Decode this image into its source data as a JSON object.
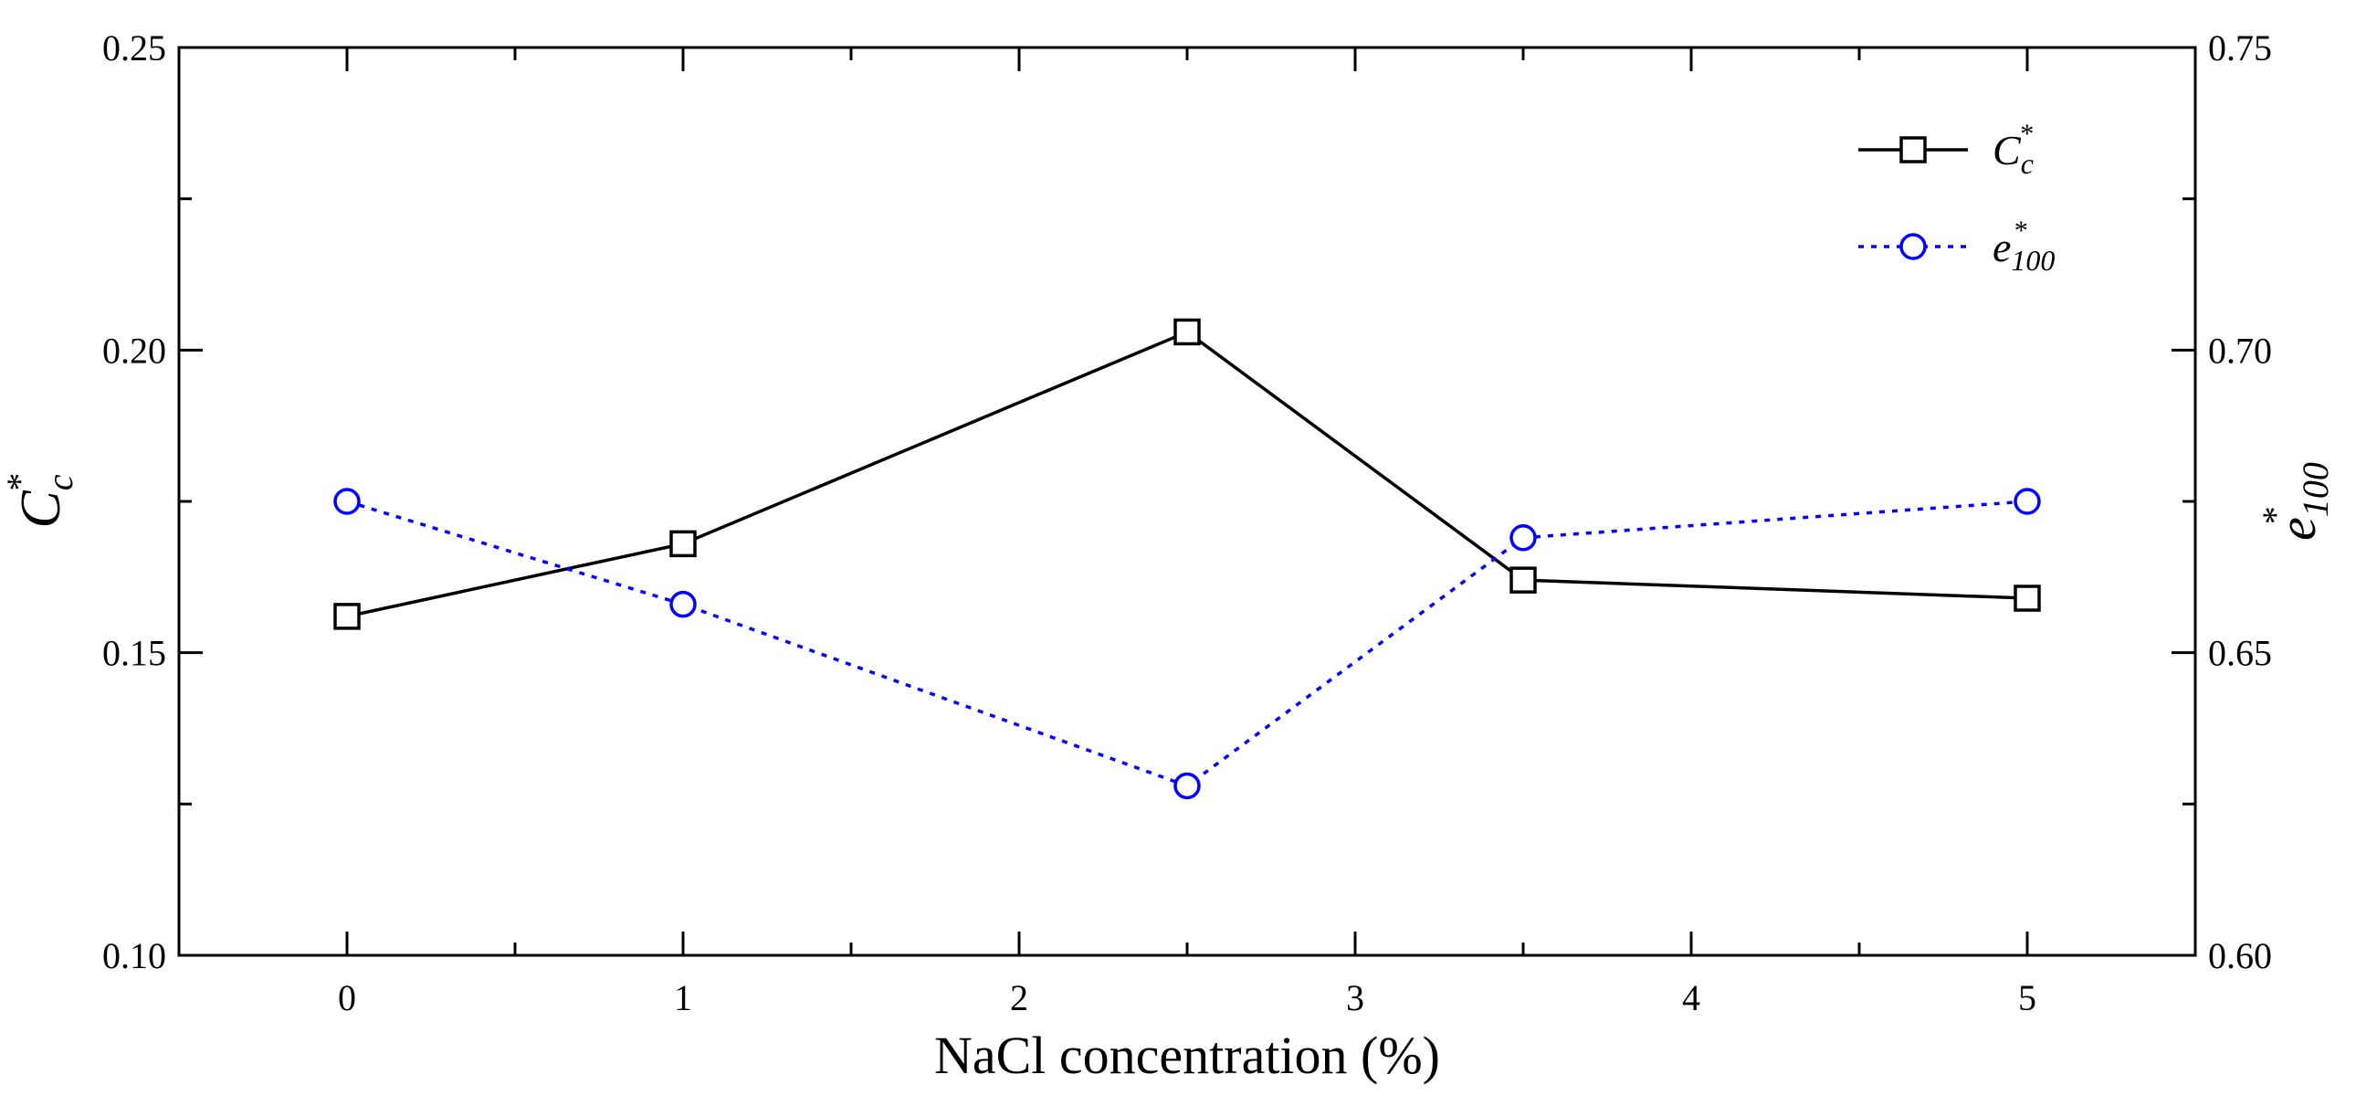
{
  "chart_data": {
    "type": "line",
    "title": "",
    "xlabel": "NaCl concentration (%)",
    "ylabel": {
      "base": "C",
      "sub": "c",
      "sup": "*"
    },
    "y2label": {
      "base": "e",
      "sub": "100",
      "sup": "*"
    },
    "xlim": [
      -0.5,
      5.5
    ],
    "ylim": [
      0.1,
      0.25
    ],
    "y2lim": [
      0.6,
      0.75
    ],
    "x_ticks": [
      "0",
      "1",
      "2",
      "3",
      "4",
      "5"
    ],
    "y_ticks": [
      "0.10",
      "0.15",
      "0.20",
      "0.25"
    ],
    "y2_ticks": [
      "0.60",
      "0.65",
      "0.70",
      "0.75"
    ],
    "legend_position": "top-right",
    "series": [
      {
        "name": "C_c*",
        "legend_base": "C",
        "legend_sub": "c",
        "legend_sup": "*",
        "axis": "left",
        "color": "#000000",
        "line_style": "solid",
        "marker": "square",
        "x": [
          0,
          1,
          2.5,
          3.5,
          5
        ],
        "values": [
          0.156,
          0.168,
          0.203,
          0.162,
          0.159
        ]
      },
      {
        "name": "e_100*",
        "legend_base": "e",
        "legend_sub": "100",
        "legend_sup": "*",
        "axis": "right",
        "color": "#0000ff",
        "line_style": "dotted",
        "marker": "circle",
        "x": [
          0,
          1,
          2.5,
          3.5,
          5
        ],
        "values": [
          0.675,
          0.658,
          0.628,
          0.669,
          0.675
        ]
      }
    ]
  }
}
